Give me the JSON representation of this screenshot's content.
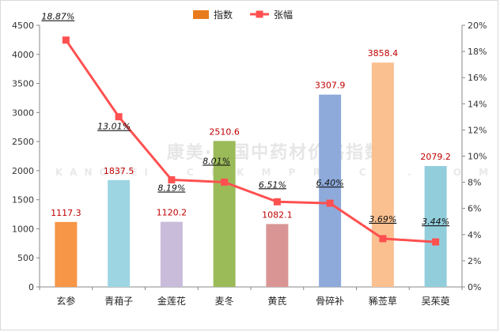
{
  "chart_data": {
    "type": "bar",
    "categories": [
      "玄参",
      "青葙子",
      "金莲花",
      "麦冬",
      "黄芪",
      "骨碎补",
      "豨莶草",
      "吴茱萸"
    ],
    "series": [
      {
        "name": "指数",
        "type": "bar",
        "axis": "left",
        "values": [
          1117.3,
          1837.5,
          1120.2,
          2510.6,
          1082.1,
          3307.9,
          3858.4,
          2079.2
        ],
        "labels": [
          "1117.3",
          "1837.5",
          "1120.2",
          "2510.6",
          "1082.1",
          "3307.9",
          "3858.4",
          "2079.2"
        ],
        "colors": [
          "#f79646",
          "#9dd5e3",
          "#c9bcdb",
          "#9bbb59",
          "#d99594",
          "#8eaadb",
          "#fac090",
          "#92cddc"
        ]
      },
      {
        "name": "张幅",
        "type": "line",
        "axis": "right",
        "values": [
          18.87,
          13.01,
          8.19,
          8.01,
          6.51,
          6.4,
          3.69,
          3.44
        ],
        "labels": [
          "18.87%",
          "13.01%",
          "8.19%",
          "8.01%",
          "6.51%",
          "6.40%",
          "3.69%",
          "3.44%"
        ],
        "color": "#ff5050"
      }
    ],
    "y_left": {
      "min": 0,
      "max": 4500,
      "step": 500,
      "ticks": [
        "0",
        "500",
        "1000",
        "1500",
        "2000",
        "2500",
        "3000",
        "3500",
        "4000",
        "4500"
      ]
    },
    "y_right": {
      "min": 0,
      "max": 20,
      "step": 2,
      "ticks": [
        "0%",
        "2%",
        "4%",
        "6%",
        "8%",
        "10%",
        "12%",
        "14%",
        "16%",
        "18%",
        "20%"
      ]
    },
    "legend": {
      "placement": "top-center"
    },
    "grid": false
  },
  "watermark": {
    "line1": "康美·中国中药材价格指数",
    "line2": "KANGMEI  .  C N K M P R I C E  .  C O M"
  }
}
